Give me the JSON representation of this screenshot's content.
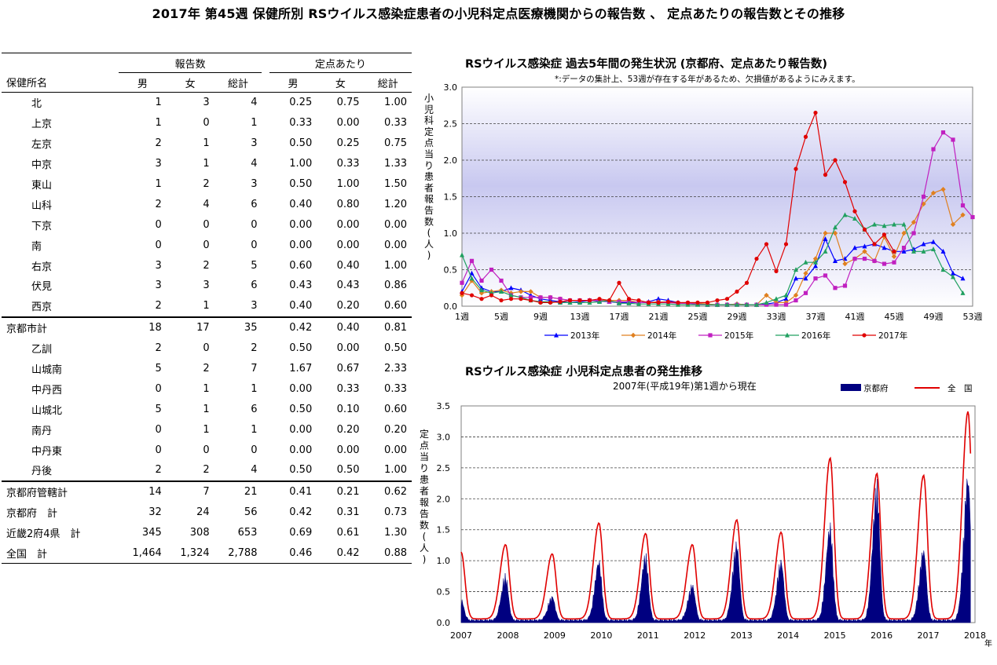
{
  "title": "2017年 第45週 保健所別 RSウイルス感染症患者の小児科定点医療機関からの報告数 、 定点あたりの報告数とその推移",
  "table": {
    "group_headers": [
      "報告数",
      "定点あたり"
    ],
    "col_headers": [
      "保健所名",
      "男",
      "女",
      "総計",
      "男",
      "女",
      "総計"
    ],
    "rows": [
      {
        "name": "北",
        "indent": true,
        "vals": [
          "1",
          "3",
          "4",
          "0.25",
          "0.75",
          "1.00"
        ]
      },
      {
        "name": "上京",
        "indent": true,
        "vals": [
          "1",
          "0",
          "1",
          "0.33",
          "0.00",
          "0.33"
        ]
      },
      {
        "name": "左京",
        "indent": true,
        "vals": [
          "2",
          "1",
          "3",
          "0.50",
          "0.25",
          "0.75"
        ]
      },
      {
        "name": "中京",
        "indent": true,
        "vals": [
          "3",
          "1",
          "4",
          "1.00",
          "0.33",
          "1.33"
        ]
      },
      {
        "name": "東山",
        "indent": true,
        "vals": [
          "1",
          "2",
          "3",
          "0.50",
          "1.00",
          "1.50"
        ]
      },
      {
        "name": "山科",
        "indent": true,
        "vals": [
          "2",
          "4",
          "6",
          "0.40",
          "0.80",
          "1.20"
        ]
      },
      {
        "name": "下京",
        "indent": true,
        "vals": [
          "0",
          "0",
          "0",
          "0.00",
          "0.00",
          "0.00"
        ]
      },
      {
        "name": "南",
        "indent": true,
        "vals": [
          "0",
          "0",
          "0",
          "0.00",
          "0.00",
          "0.00"
        ]
      },
      {
        "name": "右京",
        "indent": true,
        "vals": [
          "3",
          "2",
          "5",
          "0.60",
          "0.40",
          "1.00"
        ]
      },
      {
        "name": "伏見",
        "indent": true,
        "vals": [
          "3",
          "3",
          "6",
          "0.43",
          "0.43",
          "0.86"
        ]
      },
      {
        "name": "西京",
        "indent": true,
        "vals": [
          "2",
          "1",
          "3",
          "0.40",
          "0.20",
          "0.60"
        ]
      },
      {
        "name": "京都市計",
        "indent": false,
        "vals": [
          "18",
          "17",
          "35",
          "0.42",
          "0.40",
          "0.81"
        ]
      },
      {
        "name": "乙訓",
        "indent": true,
        "vals": [
          "2",
          "0",
          "2",
          "0.50",
          "0.00",
          "0.50"
        ]
      },
      {
        "name": "山城南",
        "indent": true,
        "vals": [
          "5",
          "2",
          "7",
          "1.67",
          "0.67",
          "2.33"
        ]
      },
      {
        "name": "中丹西",
        "indent": true,
        "vals": [
          "0",
          "1",
          "1",
          "0.00",
          "0.33",
          "0.33"
        ]
      },
      {
        "name": "山城北",
        "indent": true,
        "vals": [
          "5",
          "1",
          "6",
          "0.50",
          "0.10",
          "0.60"
        ]
      },
      {
        "name": "南丹",
        "indent": true,
        "vals": [
          "0",
          "1",
          "1",
          "0.00",
          "0.20",
          "0.20"
        ]
      },
      {
        "name": "中丹東",
        "indent": true,
        "vals": [
          "0",
          "0",
          "0",
          "0.00",
          "0.00",
          "0.00"
        ]
      },
      {
        "name": "丹後",
        "indent": true,
        "vals": [
          "2",
          "2",
          "4",
          "0.50",
          "0.50",
          "1.00"
        ]
      },
      {
        "name": "京都府管轄計",
        "indent": false,
        "vals": [
          "14",
          "7",
          "21",
          "0.41",
          "0.21",
          "0.62"
        ]
      },
      {
        "name": "京都府　計",
        "indent": false,
        "vals": [
          "32",
          "24",
          "56",
          "0.42",
          "0.31",
          "0.73"
        ]
      },
      {
        "name": "近畿2府4県　計",
        "indent": false,
        "vals": [
          "345",
          "308",
          "653",
          "0.69",
          "0.61",
          "1.30"
        ]
      },
      {
        "name": "全国　計",
        "indent": false,
        "vals": [
          "1,464",
          "1,324",
          "2,788",
          "0.46",
          "0.42",
          "0.88"
        ]
      }
    ]
  },
  "chart_data": [
    {
      "type": "line",
      "title": "RSウイルス感染症 過去5年間の発生状況 (京都府、定点あたり報告数)",
      "subtitle": "*:データの集計上、53週が存在する年があるため、欠損値があるようにみえます。",
      "ylabel": "小児科定点当り患者報告数(人)",
      "ylim": [
        0,
        3.0
      ],
      "yticks": [
        "0.0",
        "0.5",
        "1.0",
        "1.5",
        "2.0",
        "2.5",
        "3.0"
      ],
      "xticks": [
        "1週",
        "5週",
        "9週",
        "13週",
        "17週",
        "21週",
        "25週",
        "29週",
        "33週",
        "37週",
        "41週",
        "45週",
        "49週",
        "53週"
      ],
      "x": [
        1,
        2,
        3,
        4,
        5,
        6,
        7,
        8,
        9,
        10,
        11,
        12,
        13,
        14,
        15,
        16,
        17,
        18,
        19,
        20,
        21,
        22,
        23,
        24,
        25,
        26,
        27,
        28,
        29,
        30,
        31,
        32,
        33,
        34,
        35,
        36,
        37,
        38,
        39,
        40,
        41,
        42,
        43,
        44,
        45,
        46,
        47,
        48,
        49,
        50,
        51,
        52,
        53
      ],
      "grid": true,
      "legend": "bottom",
      "series": [
        {
          "name": "2013年",
          "color": "#0000ff",
          "marker": "triangle",
          "values": [
            0.2,
            0.45,
            0.25,
            0.2,
            0.2,
            0.25,
            0.22,
            0.15,
            0.1,
            0.08,
            0.06,
            0.05,
            0.06,
            0.08,
            0.07,
            0.06,
            0.05,
            0.05,
            0.05,
            0.06,
            0.1,
            0.08,
            0.05,
            0.04,
            0.03,
            0.02,
            0.02,
            0.02,
            0.03,
            0.02,
            0.02,
            0.03,
            0.05,
            0.1,
            0.38,
            0.38,
            0.55,
            0.92,
            0.62,
            0.65,
            0.8,
            0.82,
            0.85,
            0.8,
            0.75,
            0.75,
            0.78,
            0.85,
            0.88,
            0.75,
            0.45,
            0.38,
            null
          ]
        },
        {
          "name": "2014年",
          "color": "#e08020",
          "marker": "diamond",
          "values": [
            0.15,
            0.35,
            0.18,
            0.2,
            0.22,
            0.18,
            0.2,
            0.2,
            0.12,
            0.12,
            0.1,
            0.08,
            0.08,
            0.08,
            0.08,
            0.08,
            0.08,
            0.08,
            0.05,
            0.05,
            0.06,
            0.05,
            0.04,
            0.04,
            0.04,
            0.03,
            0.02,
            0.02,
            0.03,
            0.02,
            0.02,
            0.15,
            0.05,
            0.05,
            0.15,
            0.45,
            0.65,
            1.0,
            1.0,
            0.58,
            0.65,
            0.75,
            0.62,
            0.95,
            0.68,
            1.0,
            1.15,
            1.4,
            1.55,
            1.6,
            1.12,
            1.25,
            null
          ]
        },
        {
          "name": "2015年",
          "color": "#c020c0",
          "marker": "square",
          "values": [
            0.32,
            0.62,
            0.35,
            0.5,
            0.35,
            0.15,
            0.12,
            0.12,
            0.12,
            0.12,
            0.1,
            0.08,
            0.08,
            0.08,
            0.08,
            0.06,
            0.06,
            0.06,
            0.05,
            0.05,
            0.05,
            0.05,
            0.04,
            0.04,
            0.03,
            0.02,
            0.02,
            0.02,
            0.02,
            0.02,
            0.02,
            0.02,
            0.02,
            0.02,
            0.08,
            0.18,
            0.38,
            0.42,
            0.25,
            0.28,
            0.65,
            0.65,
            0.62,
            0.58,
            0.6,
            0.8,
            1.0,
            1.5,
            2.15,
            2.38,
            2.28,
            1.38,
            1.22
          ]
        },
        {
          "name": "2016年",
          "color": "#20a060",
          "marker": "triangle",
          "values": [
            0.7,
            0.38,
            0.22,
            0.18,
            0.2,
            0.15,
            0.12,
            0.08,
            0.06,
            0.06,
            0.05,
            0.05,
            0.05,
            0.05,
            0.06,
            0.08,
            0.04,
            0.04,
            0.03,
            0.03,
            0.03,
            0.03,
            0.02,
            0.02,
            0.02,
            0.02,
            0.02,
            0.02,
            0.02,
            0.02,
            0.02,
            0.05,
            0.1,
            0.15,
            0.5,
            0.6,
            0.6,
            0.75,
            1.08,
            1.25,
            1.2,
            1.05,
            1.12,
            1.1,
            1.12,
            1.12,
            0.75,
            0.75,
            0.78,
            0.5,
            0.4,
            0.18,
            null
          ]
        },
        {
          "name": "2017年",
          "color": "#e00000",
          "marker": "circle",
          "values": [
            0.18,
            0.15,
            0.1,
            0.15,
            0.08,
            0.1,
            0.1,
            0.08,
            0.05,
            0.05,
            0.06,
            0.08,
            0.08,
            0.08,
            0.1,
            0.08,
            0.32,
            0.1,
            0.08,
            0.05,
            0.05,
            0.06,
            0.05,
            0.05,
            0.05,
            0.05,
            0.08,
            0.1,
            0.2,
            0.32,
            0.65,
            0.85,
            0.48,
            0.85,
            1.88,
            2.32,
            2.65,
            1.8,
            2.0,
            1.7,
            1.3,
            1.05,
            0.85,
            0.98,
            0.75,
            null,
            null,
            null,
            null,
            null,
            null,
            null,
            null
          ]
        }
      ]
    },
    {
      "type": "area",
      "title": "RSウイルス感染症 小児科定点患者の発生推移",
      "subtitle": "2007年(平成19年)第1週から現在",
      "ylabel": "定点当り患者報告数(人)",
      "xlabel_suffix": "年",
      "ylim": [
        0,
        3.5
      ],
      "yticks": [
        "0.0",
        "0.5",
        "1.0",
        "1.5",
        "2.0",
        "2.5",
        "3.0",
        "3.5"
      ],
      "xticks": [
        "2007",
        "2008",
        "2009",
        "2010",
        "2011",
        "2012",
        "2013",
        "2014",
        "2015",
        "2016",
        "2017",
        "2018"
      ],
      "grid": true,
      "legend": "top-right",
      "series": [
        {
          "name": "京都府",
          "color": "#000080",
          "style": "filled-area",
          "peaks": [
            {
              "year": 2007.0,
              "value": 0.35
            },
            {
              "year": 2007.95,
              "value": 0.75
            },
            {
              "year": 2008.95,
              "value": 0.4
            },
            {
              "year": 2009.95,
              "value": 1.0
            },
            {
              "year": 2010.95,
              "value": 1.1
            },
            {
              "year": 2011.95,
              "value": 0.6
            },
            {
              "year": 2012.9,
              "value": 1.3
            },
            {
              "year": 2013.85,
              "value": 1.0
            },
            {
              "year": 2014.9,
              "value": 1.6
            },
            {
              "year": 2015.9,
              "value": 2.3
            },
            {
              "year": 2016.9,
              "value": 1.2
            },
            {
              "year": 2017.85,
              "value": 2.45
            }
          ]
        },
        {
          "name": "全　国",
          "color": "#e00000",
          "style": "line",
          "peaks": [
            {
              "year": 2007.0,
              "value": 1.08
            },
            {
              "year": 2007.95,
              "value": 1.2
            },
            {
              "year": 2008.95,
              "value": 1.05
            },
            {
              "year": 2009.95,
              "value": 1.55
            },
            {
              "year": 2010.95,
              "value": 1.38
            },
            {
              "year": 2011.95,
              "value": 1.2
            },
            {
              "year": 2012.9,
              "value": 1.6
            },
            {
              "year": 2013.85,
              "value": 1.4
            },
            {
              "year": 2014.9,
              "value": 2.6
            },
            {
              "year": 2015.9,
              "value": 2.35
            },
            {
              "year": 2016.9,
              "value": 2.32
            },
            {
              "year": 2017.85,
              "value": 3.35
            }
          ]
        }
      ]
    }
  ]
}
